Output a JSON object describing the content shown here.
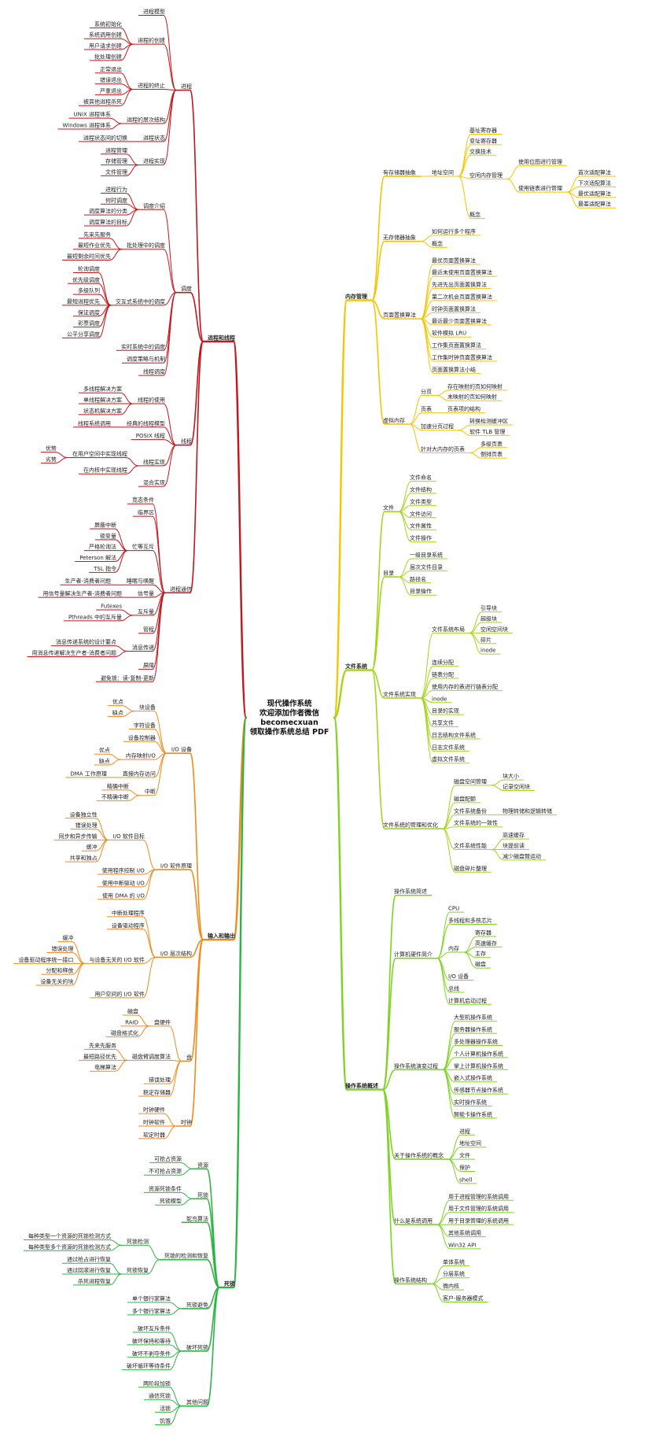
{
  "center": [
    "现代操作系统",
    "欢迎添加作者微信",
    "becomecxuan",
    "领取操作系统总结 PDF"
  ],
  "left": [
    {
      "label": "进程和线程",
      "color": "#c3151b",
      "children": [
        {
          "label": "进程",
          "children": [
            "进程模型",
            {
              "label": "进程的创建",
              "children": [
                "系统初始化",
                "系统调用创建",
                "用户请求创建",
                "批处理创建"
              ]
            },
            {
              "label": "进程的终止",
              "children": [
                "正常退出",
                "错误退出",
                "严重退出",
                "被其他进程杀死"
              ]
            },
            {
              "label": "进程的层次结构",
              "children": [
                "UNIX 进程体系",
                "Windows 进程体系"
              ]
            },
            {
              "label": "进程状态",
              "children": [
                "进程状态间的切换"
              ]
            },
            {
              "label": "进程实现",
              "children": [
                "进程管理",
                "存储管理",
                "文件管理"
              ]
            }
          ]
        },
        {
          "label": "调度",
          "children": [
            {
              "label": "调度介绍",
              "children": [
                "进程行为",
                "何时调度",
                "调度算法的分类",
                "调度算法的目标"
              ]
            },
            {
              "label": "批处理中的调度",
              "children": [
                "先来先服务",
                "最短作业优先",
                "最短剩余时间优先"
              ]
            },
            {
              "label": "交互式系统中的调度",
              "children": [
                "轮询调度",
                "优先级调度",
                "多级队列",
                "最短进程优先",
                "保证调度",
                "彩票调度",
                "公平分享调度"
              ]
            },
            "实时系统中的调度",
            "调度策略与机制",
            "线程调度"
          ]
        },
        {
          "label": "线程",
          "children": [
            {
              "label": "线程的使用",
              "children": [
                "多线程解决方案",
                "单线程解决方案",
                "状态机解决方案"
              ]
            },
            {
              "label": "经典的线程模型",
              "children": [
                "线程系统调用"
              ]
            },
            "POSIX 线程",
            {
              "label": "线程实现",
              "children": [
                {
                  "label": "在用户空间中实现线程",
                  "children": [
                    "优势",
                    "劣势"
                  ]
                },
                "在内核中实现线程"
              ]
            },
            "混合实现"
          ]
        },
        {
          "label": "进程通信",
          "children": [
            "竞态条件",
            "临界区",
            {
              "label": "忙等互斥",
              "children": [
                "屏蔽中断",
                "锁变量",
                "严格轮询法",
                "Peterson 解法",
                "TSL 指令"
              ]
            },
            {
              "label": "睡眠与唤醒",
              "children": [
                "生产者-消费者问题"
              ]
            },
            {
              "label": "信号量",
              "children": [
                "用信号量解决生产者-消费者问题"
              ]
            },
            {
              "label": "互斥量",
              "children": [
                "Futexes",
                "Pthreads 中的互斥量"
              ]
            },
            "管程",
            {
              "label": "消息传递",
              "children": [
                "消息传递系统的设计要点",
                "用消息传递解决生产者-消费者问题"
              ]
            },
            "屏障",
            "避免锁：读-复制-更新"
          ]
        }
      ]
    },
    {
      "label": "输入和输出",
      "color": "#f08a1d",
      "children": [
        {
          "label": "I/O 设备",
          "children": [
            {
              "label": "块设备",
              "children": [
                "优点",
                "缺点"
              ]
            },
            "字符设备",
            "设备控制器",
            {
              "label": "内存映射I/O",
              "children": [
                "优点",
                "缺点"
              ]
            },
            {
              "label": "直接内存访问",
              "children": [
                "DMA 工作原理"
              ]
            },
            {
              "label": "中断",
              "children": [
                "精确中断",
                "不精确中断"
              ]
            }
          ]
        },
        {
          "label": "I/O 软件原理",
          "children": [
            {
              "label": "I/O 软件目标",
              "children": [
                "设备独立性",
                "错误处理",
                "同步和异步传输",
                "缓冲",
                "共享和独占"
              ]
            },
            "使用程序控制 I/O",
            "使用中断驱动 I/O",
            "使用 DMA 的 I/O"
          ]
        },
        {
          "label": "I/O 层次结构",
          "children": [
            "中断处理程序",
            "设备驱动程序",
            {
              "label": "与设备无关的 I/O 软件",
              "children": [
                "缓冲",
                "错误处理",
                "设备驱动程序统一接口",
                "分配和释放",
                "设备无关的块"
              ]
            },
            "用户空间的 I/O 软件"
          ]
        },
        {
          "label": "盘",
          "children": [
            {
              "label": "盘硬件",
              "children": [
                "磁盘",
                "RAID",
                "磁盘格式化"
              ]
            },
            {
              "label": "磁盘臂调度算法",
              "children": [
                "先来先服务",
                "最短路径优先",
                "电梯算法"
              ]
            },
            "错误处理",
            "稳定存储器"
          ]
        },
        {
          "label": "时钟",
          "children": [
            "时钟硬件",
            "时钟软件",
            "软定时器"
          ]
        }
      ]
    },
    {
      "label": "死锁",
      "color": "#2fb344",
      "children": [
        {
          "label": "资源",
          "children": [
            "可抢占资源",
            "不可抢占资源"
          ]
        },
        {
          "label": "死锁",
          "children": [
            "资源死锁条件",
            "死锁模型"
          ]
        },
        "鸵鸟算法",
        {
          "label": "死锁的检测和恢复",
          "children": [
            {
              "label": "死锁检测",
              "children": [
                "每种类型一个资源的死锁检测方式",
                "每种类型多个资源的死锁检测方式"
              ]
            },
            {
              "label": "死锁恢复",
              "children": [
                "通过抢占进行恢复",
                "通过回滚进行恢复",
                "杀死进程恢复"
              ]
            }
          ]
        },
        {
          "label": "死锁避免",
          "children": [
            "单个银行家算法",
            "多个银行家算法"
          ]
        },
        {
          "label": "破坏死锁",
          "children": [
            "破坏互斥条件",
            "破坏保持和等待",
            "破坏不剥夺条件",
            "破坏循环等待条件"
          ]
        },
        {
          "label": "其他问题",
          "children": [
            "两阶段加锁",
            "通信死锁",
            "活锁",
            "饥饿"
          ]
        }
      ]
    }
  ],
  "right": [
    {
      "label": "内存管理",
      "color": "#f5c500",
      "children": [
        {
          "label": "有存储器抽象",
          "children": [
            {
              "label": "地址空间",
              "children": [
                "基址寄存器",
                "变址寄存器",
                "交换技术",
                {
                  "label": "空闲内存管理",
                  "children": [
                    "使用位图进行管理",
                    {
                      "label": "使用链表进行管理",
                      "children": [
                        "首次适配算法",
                        "下次适配算法",
                        "最优适配算法",
                        "最差适配算法"
                      ]
                    }
                  ]
                },
                "概念"
              ]
            }
          ]
        },
        {
          "label": "无存储器抽象",
          "children": [
            "如何运行多个程序",
            "概念"
          ]
        },
        {
          "label": "页面置换算法",
          "children": [
            "最优页面置换算法",
            "最近未使用页面置换算法",
            "先进先出页面置换算法",
            "第二次机会页面置换算法",
            "时钟页面置换算法",
            "最近最少页面置换算法",
            "软件模拟 LRU",
            "工作集页面置换算法",
            "工作集时钟页面置换算法",
            "页面置换算法小结"
          ]
        },
        {
          "label": "虚拟内存",
          "children": [
            {
              "label": "分页",
              "children": [
                "存在映射的页如何映射",
                "未映射的页如何映射"
              ]
            },
            {
              "label": "页表",
              "children": [
                "页表项的结构"
              ]
            },
            {
              "label": "加速分页过程",
              "children": [
                "转换检测缓冲区",
                "软件 TLB 管理"
              ]
            },
            {
              "label": "针对大内存的页表",
              "children": [
                "多级页表",
                "倒排页表"
              ]
            }
          ]
        }
      ]
    },
    {
      "label": "文件系统",
      "color": "#a4d41c",
      "children": [
        {
          "label": "文件",
          "children": [
            "文件命名",
            "文件结构",
            "文件类型",
            "文件访问",
            "文件属性",
            "文件操作"
          ]
        },
        {
          "label": "目录",
          "children": [
            "一级目录系统",
            "层次文件目录",
            "路径名",
            "目录操作"
          ]
        },
        {
          "label": "文件系统实现",
          "children": [
            {
              "label": "文件系统布局",
              "children": [
                "引导块",
                "超级块",
                "空闲空间块",
                "碎片",
                "inode"
              ]
            },
            "连续分配",
            "链表分配",
            "使用内存的表进行链表分配",
            "inode",
            "目录的实现",
            "共享文件",
            "日志结构文件系统",
            "日志文件系统",
            "虚拟文件系统"
          ]
        },
        {
          "label": "文件系统的管理和优化",
          "children": [
            {
              "label": "磁盘空间管理",
              "children": [
                "块大小",
                "记录空闲块"
              ]
            },
            "磁盘配额",
            {
              "label": "文件系统备份",
              "children": [
                "物理转储和逻辑转储"
              ]
            },
            "文件系统的一致性",
            {
              "label": "文件系统性能",
              "children": [
                "高速缓存",
                "块提前读",
                "减少磁盘臂运动"
              ]
            },
            "磁盘碎片整理"
          ]
        }
      ]
    },
    {
      "label": "操作系统概述",
      "color": "#7ed321",
      "children": [
        "操作系统简述",
        {
          "label": "计算机硬件简介",
          "children": [
            "CPU",
            "多线程和多核芯片",
            {
              "label": "内存",
              "children": [
                "寄存器",
                "高速缓存",
                "主存",
                "磁盘"
              ]
            },
            "I/O 设备",
            "总线",
            "计算机启动过程"
          ]
        },
        {
          "label": "操作系统演变过程",
          "children": [
            "大型机操作系统",
            "服务器操作系统",
            "多处理器操作系统",
            "个人计算机操作系统",
            "掌上计算机操作系统",
            "嵌入式操作系统",
            "传感器节点操作系统",
            "实时操作系统",
            "智能卡操作系统"
          ]
        },
        {
          "label": "关于操作系统的概念",
          "children": [
            "进程",
            "地址空间",
            "文件",
            "保护",
            "shell"
          ]
        },
        {
          "label": "什么是系统调用",
          "children": [
            "用于进程管理的系统调用",
            "用于文件管理的系统调用",
            "用于目录管理的系统调用",
            "其他系统调用",
            "Win32 API"
          ]
        },
        {
          "label": "操作系统结构",
          "children": [
            "单体系统",
            "分层系统",
            "微内核",
            "客户-服务器模式"
          ]
        }
      ]
    }
  ]
}
